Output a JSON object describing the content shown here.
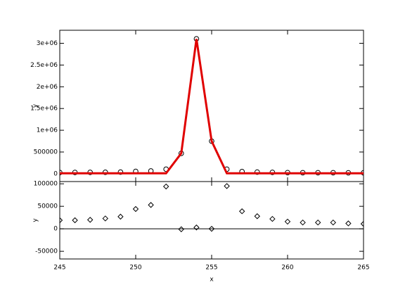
{
  "chart_data": [
    {
      "type": "line",
      "ylabel": "y",
      "x": [
        245,
        246,
        247,
        248,
        249,
        250,
        251,
        252,
        253,
        254,
        255,
        256,
        257,
        258,
        259,
        260,
        261,
        262,
        263,
        264,
        265
      ],
      "series": [
        {
          "color": "#000000",
          "marker": "circle",
          "line": false,
          "values": [
            28000,
            30000,
            31000,
            33000,
            37000,
            54000,
            63000,
            104000,
            469000,
            3103000,
            750000,
            105000,
            49000,
            38000,
            32000,
            26000,
            24000,
            24000,
            24000,
            22000,
            21000
          ]
        },
        {
          "color": "#e00000",
          "marker": "none",
          "line": true,
          "values": [
            10000,
            10000,
            10000,
            10000,
            10000,
            10000,
            10000,
            10000,
            470000,
            3100000,
            750000,
            10000,
            10000,
            10000,
            10000,
            10000,
            10000,
            10000,
            10000,
            10000,
            10000
          ]
        }
      ],
      "xlim": [
        245,
        265
      ],
      "xticks": [
        245,
        250,
        255,
        260,
        265
      ],
      "show_xtick_labels": false,
      "ylim": [
        -180000,
        3300000
      ],
      "yticks": [
        0,
        500000,
        {
          "value": 1000000,
          "label": "1e+06"
        },
        {
          "value": 1500000,
          "label": "1.5e+06"
        },
        {
          "value": 2000000,
          "label": "2e+06"
        },
        {
          "value": 2500000,
          "label": "2.5e+06"
        },
        {
          "value": 3000000,
          "label": "3e+06"
        }
      ]
    },
    {
      "type": "scatter",
      "ylabel": "y",
      "xlabel": "x",
      "x": [
        245,
        246,
        247,
        248,
        249,
        250,
        251,
        252,
        253,
        254,
        255,
        256,
        257,
        258,
        259,
        260,
        261,
        262,
        263,
        264,
        265
      ],
      "series": [
        {
          "color": "#000000",
          "marker": "diamond",
          "line": false,
          "values": [
            19000,
            19000,
            20000,
            23000,
            27000,
            44000,
            53000,
            94000,
            -1000,
            3000,
            0,
            95000,
            39000,
            28000,
            22000,
            16000,
            14000,
            14000,
            14000,
            12000,
            11000
          ]
        }
      ],
      "hline": 0,
      "xlim": [
        245,
        265
      ],
      "xticks": [
        245,
        250,
        255,
        260,
        265
      ],
      "show_xtick_labels": true,
      "ylim": [
        -67000,
        105000
      ],
      "yticks": [
        -50000,
        0,
        50000,
        100000
      ]
    }
  ]
}
